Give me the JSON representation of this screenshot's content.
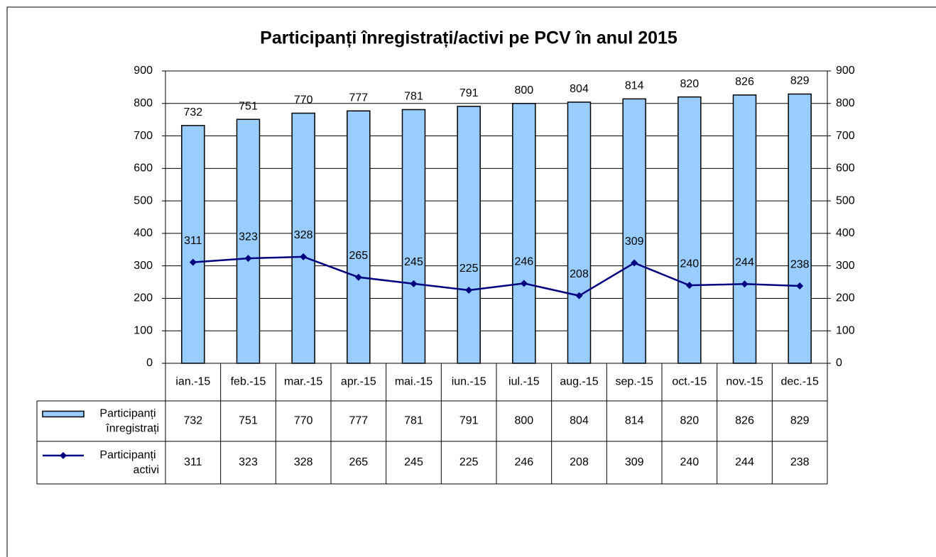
{
  "chart_data": {
    "type": "bar",
    "title": "Participanți înregistrați/activi pe PCV în anul 2015",
    "categories": [
      "ian.-15",
      "feb.-15",
      "mar.-15",
      "apr.-15",
      "mai.-15",
      "iun.-15",
      "iul.-15",
      "aug.-15",
      "sep.-15",
      "oct.-15",
      "nov.-15",
      "dec.-15"
    ],
    "series": [
      {
        "name": "Participanți înregistrați",
        "type": "bar",
        "color": "#99ccff",
        "values": [
          732,
          751,
          770,
          777,
          781,
          791,
          800,
          804,
          814,
          820,
          826,
          829
        ]
      },
      {
        "name": "Participanți activi",
        "type": "line",
        "axis": "y2",
        "color": "#000080",
        "values": [
          311,
          323,
          328,
          265,
          245,
          225,
          246,
          208,
          309,
          240,
          244,
          238
        ]
      }
    ],
    "ylim": [
      0,
      900
    ],
    "yticks": [
      0,
      100,
      200,
      300,
      400,
      500,
      600,
      700,
      800,
      900
    ],
    "y2lim": [
      0,
      900
    ],
    "y2ticks": [
      0,
      100,
      200,
      300,
      400,
      500,
      600,
      700,
      800,
      900
    ],
    "grid": true,
    "data_table": true
  }
}
